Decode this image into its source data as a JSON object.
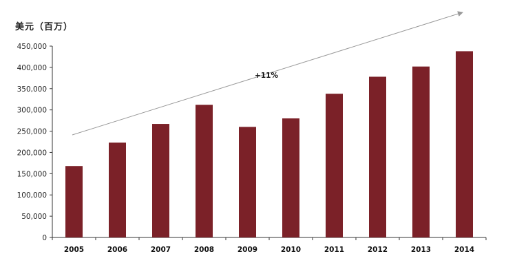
{
  "chart_data": {
    "type": "bar",
    "unit_label": "美元（百万）",
    "categories": [
      "2005",
      "2006",
      "2007",
      "2008",
      "2009",
      "2010",
      "2011",
      "2012",
      "2013",
      "2014"
    ],
    "values": [
      168000,
      223000,
      267000,
      312000,
      260000,
      280000,
      338000,
      378000,
      402000,
      438000
    ],
    "ylim": [
      0,
      450000
    ],
    "y_ticks": [
      "0",
      "50,000",
      "100,000",
      "150,000",
      "200,000",
      "250,000",
      "300,000",
      "350,000",
      "400,000",
      "450,000"
    ],
    "y_tick_values": [
      0,
      50000,
      100000,
      150000,
      200000,
      250000,
      300000,
      350000,
      400000,
      450000
    ],
    "annotation": "+11%",
    "grid": false,
    "colors": {
      "bar": "#7b2128",
      "trend_arrow": "#999999",
      "axis": "#333333"
    }
  }
}
